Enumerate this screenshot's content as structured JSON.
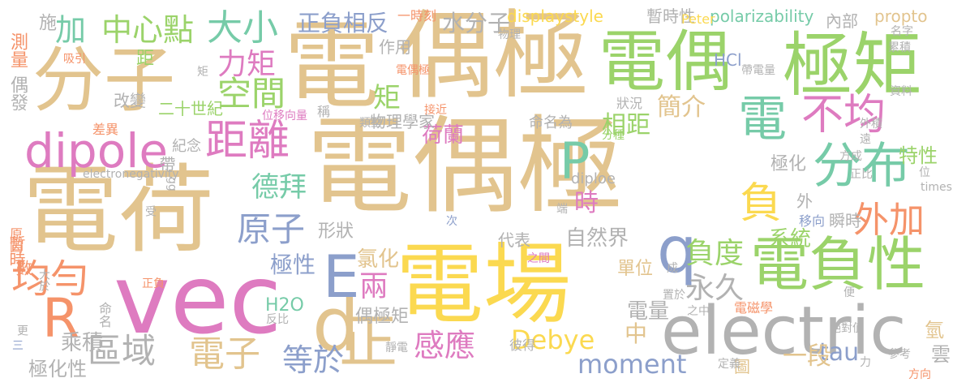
{
  "words": [
    {
      "text": "電偶極",
      "color": "#e2c48e"
    },
    {
      "text": "電荷",
      "color": "#e2c48e"
    },
    {
      "text": "電場",
      "color": "#fbd950"
    },
    {
      "text": "偶極",
      "color": "#e2c48e"
    },
    {
      "text": "vec",
      "color": "#de7bc0"
    },
    {
      "text": "電偶",
      "color": "#9bd36a"
    },
    {
      "text": "分子",
      "color": "#e2c48e"
    },
    {
      "text": "電",
      "color": "#e2c48e"
    },
    {
      "text": "極矩",
      "color": "#9bd36a"
    },
    {
      "text": "electric",
      "color": "#b2b2b2"
    },
    {
      "text": "電負性",
      "color": "#9bd36a"
    },
    {
      "text": "分布",
      "color": "#76cba8"
    },
    {
      "text": "正",
      "color": "#e2c48e"
    },
    {
      "text": "d",
      "color": "#e2c48e"
    },
    {
      "text": "q",
      "color": "#8c9fcb"
    },
    {
      "text": "E",
      "color": "#8c9fcb"
    },
    {
      "text": "R",
      "color": "#f5936a"
    },
    {
      "text": "P",
      "color": "#76cba8"
    },
    {
      "text": "dipole",
      "color": "#de7bc0"
    },
    {
      "text": "距離",
      "color": "#de7bc0"
    },
    {
      "text": "電",
      "color": "#76cba8"
    },
    {
      "text": "不均",
      "color": "#de7bc0"
    },
    {
      "text": "負",
      "color": "#fbd950"
    },
    {
      "text": "外加",
      "color": "#f5936a"
    },
    {
      "text": "大小",
      "color": "#76cba8"
    },
    {
      "text": "加",
      "color": "#76cba8"
    },
    {
      "text": "中心點",
      "color": "#9bd36a"
    },
    {
      "text": "區域",
      "color": "#b2b2b2"
    },
    {
      "text": "電子",
      "color": "#e2c48e"
    },
    {
      "text": "均勻",
      "color": "#f5936a"
    },
    {
      "text": "力矩",
      "color": "#de7bc0"
    },
    {
      "text": "空間",
      "color": "#9bd36a"
    },
    {
      "text": "原子",
      "color": "#8c9fcb"
    },
    {
      "text": "等於",
      "color": "#8c9fcb"
    },
    {
      "text": "感應",
      "color": "#de7bc0"
    },
    {
      "text": "moment",
      "color": "#8c9fcb"
    },
    {
      "text": "Debye",
      "color": "#fbd950"
    },
    {
      "text": "負度",
      "color": "#9bd36a"
    },
    {
      "text": "永久",
      "color": "#b2b2b2"
    },
    {
      "text": "德拜",
      "color": "#76cba8"
    },
    {
      "text": "兩",
      "color": "#de7bc0"
    },
    {
      "text": "矩",
      "color": "#9bd36a"
    },
    {
      "text": "時",
      "color": "#de7bc0"
    },
    {
      "text": "tau",
      "color": "#8c9fcb"
    },
    {
      "text": "水分子",
      "color": "#b2b2b2"
    },
    {
      "text": "正負相反",
      "color": "#8c9fcb"
    },
    {
      "text": "簡介",
      "color": "#e2c48e"
    },
    {
      "text": "相距",
      "color": "#9bd36a"
    },
    {
      "text": "荷蘭",
      "color": "#de7bc0"
    },
    {
      "text": "自然界",
      "color": "#b2b2b2"
    },
    {
      "text": "系統",
      "color": "#9bd36a"
    },
    {
      "text": "極性",
      "color": "#8c9fcb"
    },
    {
      "text": "氯化",
      "color": "#e2c48e"
    },
    {
      "text": "一段",
      "color": "#e2c48e"
    },
    {
      "text": "中",
      "color": "#e2c48e"
    },
    {
      "text": "電量",
      "color": "#b2b2b2"
    },
    {
      "text": "乘積",
      "color": "#b2b2b2"
    },
    {
      "text": "極化性",
      "color": "#b2b2b2"
    },
    {
      "text": "H2O",
      "color": "#76cba8"
    },
    {
      "text": "偶極矩",
      "color": "#b2b2b2"
    },
    {
      "text": "形狀",
      "color": "#b2b2b2"
    },
    {
      "text": "代表",
      "color": "#b2b2b2"
    },
    {
      "text": "單位",
      "color": "#e2c48e"
    },
    {
      "text": "極化",
      "color": "#b2b2b2"
    },
    {
      "text": "特性",
      "color": "#9bd36a"
    },
    {
      "text": "氫",
      "color": "#e2c48e"
    },
    {
      "text": "雲",
      "color": "#b2b2b2"
    },
    {
      "text": "改變",
      "color": "#b2b2b2"
    },
    {
      "text": "二十世紀",
      "color": "#9bd36a"
    },
    {
      "text": "紀念",
      "color": "#b2b2b2"
    },
    {
      "text": "距",
      "color": "#9bd36a"
    },
    {
      "text": "物理學家",
      "color": "#b2b2b2"
    },
    {
      "text": "命名為",
      "color": "#b2b2b2"
    },
    {
      "text": "displaystyle",
      "color": "#fbd950"
    },
    {
      "text": "暫時性",
      "color": "#b2b2b2"
    },
    {
      "text": "polarizability",
      "color": "#76cba8"
    },
    {
      "text": "propto",
      "color": "#e2c48e"
    },
    {
      "text": "內部",
      "color": "#b2b2b2"
    },
    {
      "text": "HCl",
      "color": "#8c9fcb"
    },
    {
      "text": "作用",
      "color": "#b2b2b2"
    },
    {
      "text": "施",
      "color": "#b2b2b2"
    },
    {
      "text": "測量",
      "color": "#f5936a"
    },
    {
      "text": "偶發",
      "color": "#b2b2b2"
    },
    {
      "text": "暫時",
      "color": "#f5936a"
    },
    {
      "text": "數",
      "color": "#f5936a"
    },
    {
      "text": "原因",
      "color": "#f5936a"
    },
    {
      "text": "命名",
      "color": "#b2b2b2"
    },
    {
      "text": "diploe",
      "color": "#b2b2b2"
    },
    {
      "text": "electronegativity",
      "color": "#b2b2b2"
    },
    {
      "text": "Peter",
      "color": "#fbd950"
    },
    {
      "text": "一時刻",
      "color": "#f5936a"
    },
    {
      "text": "外",
      "color": "#b2b2b2"
    },
    {
      "text": "瞬時",
      "color": "#b2b2b2"
    },
    {
      "text": "移向",
      "color": "#8c9fcb"
    },
    {
      "text": "狀況",
      "color": "#b2b2b2"
    },
    {
      "text": "電磁學",
      "color": "#f5936a"
    },
    {
      "text": "彼得",
      "color": "#b2b2b2"
    },
    {
      "text": "圖",
      "color": "#e2c48e"
    },
    {
      "text": "帶",
      "color": "#b2b2b2"
    },
    {
      "text": "差異",
      "color": "#f5936a"
    },
    {
      "text": "吸引",
      "color": "#f5936a"
    },
    {
      "text": "物理",
      "color": "#b2b2b2"
    },
    {
      "text": "電偶極",
      "color": "#f5936a"
    },
    {
      "text": "位移向量",
      "color": "#de7bc0"
    },
    {
      "text": "稱",
      "color": "#b2b2b2"
    },
    {
      "text": "類型",
      "color": "#b2b2b2"
    },
    {
      "text": "接近",
      "color": "#f5936a"
    },
    {
      "text": "名字",
      "color": "#b2b2b2"
    },
    {
      "text": "累積",
      "color": "#b2b2b2"
    },
    {
      "text": "帶電量",
      "color": "#b2b2b2"
    },
    {
      "text": "資料",
      "color": "#b2b2b2"
    },
    {
      "text": "外積",
      "color": "#b2b2b2"
    },
    {
      "text": "遠",
      "color": "#b2b2b2"
    },
    {
      "text": "方成",
      "color": "#b2b2b2"
    },
    {
      "text": "正比",
      "color": "#b2b2b2"
    },
    {
      "text": "位",
      "color": "#b2b2b2"
    },
    {
      "text": "times",
      "color": "#b2b2b2"
    },
    {
      "text": "分種",
      "color": "#9bd36a"
    },
    {
      "text": "端",
      "color": "#b2b2b2"
    },
    {
      "text": "gg",
      "color": "#b2b2b2"
    },
    {
      "text": "受",
      "color": "#b2b2b2"
    },
    {
      "text": "次",
      "color": "#8c9fcb"
    },
    {
      "text": "大於",
      "color": "#b2b2b2"
    },
    {
      "text": "正負",
      "color": "#f5936a"
    },
    {
      "text": "更",
      "color": "#b2b2b2"
    },
    {
      "text": "三",
      "color": "#8c9fcb"
    },
    {
      "text": "反比",
      "color": "#b2b2b2"
    },
    {
      "text": "靜電",
      "color": "#b2b2b2"
    },
    {
      "text": "之間",
      "color": "#de7bc0"
    },
    {
      "text": "之中",
      "color": "#b2b2b2"
    },
    {
      "text": "置於",
      "color": "#b2b2b2"
    },
    {
      "text": "成",
      "color": "#b2b2b2"
    },
    {
      "text": "絕對值",
      "color": "#b2b2b2"
    },
    {
      "text": "便",
      "color": "#b2b2b2"
    },
    {
      "text": "參考",
      "color": "#b2b2b2"
    },
    {
      "text": "方向",
      "color": "#f5936a"
    },
    {
      "text": "定義",
      "color": "#b2b2b2"
    },
    {
      "text": "力",
      "color": "#b2b2b2"
    },
    {
      "text": "矩",
      "color": "#b2b2b2"
    }
  ]
}
